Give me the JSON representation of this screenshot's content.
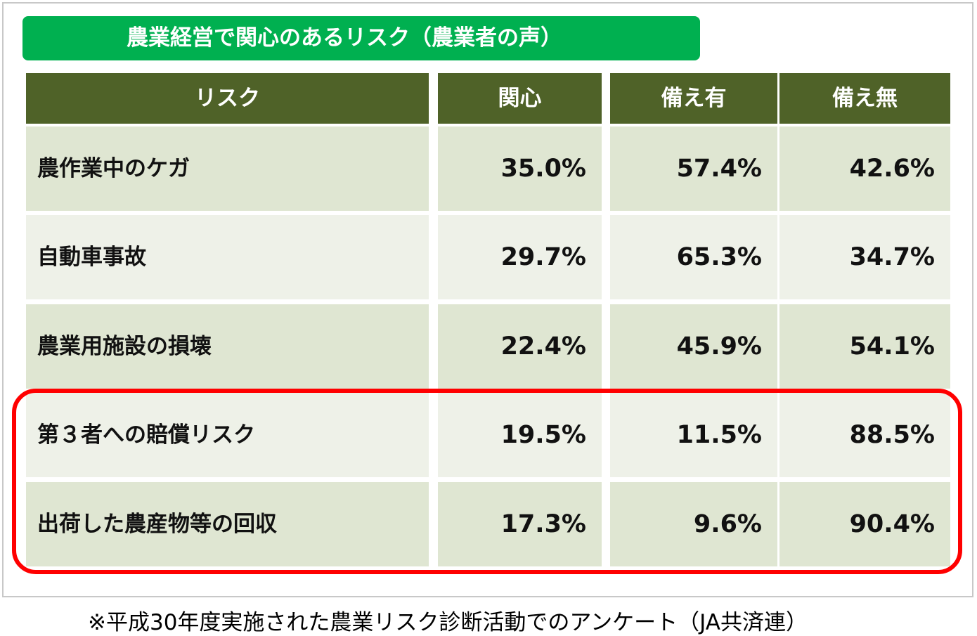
{
  "chart_data": {
    "type": "table",
    "title": "農業経営で関心のあるリスク（農業者の声）",
    "columns": [
      "リスク",
      "関心",
      "備え有",
      "備え無"
    ],
    "rows": [
      {
        "label": "農作業中のケガ",
        "values": [
          "35.0%",
          "57.4%",
          "42.6%"
        ]
      },
      {
        "label": "自動車事故",
        "values": [
          "29.7%",
          "65.3%",
          "34.7%"
        ]
      },
      {
        "label": "農業用施設の損壊",
        "values": [
          "22.4%",
          "45.9%",
          "54.1%"
        ]
      },
      {
        "label": "第３者への賠償リスク",
        "values": [
          "19.5%",
          "11.5%",
          "88.5%"
        ]
      },
      {
        "label": "出荷した農産物等の回収",
        "values": [
          "17.3%",
          "9.6%",
          "90.4%"
        ]
      }
    ],
    "highlighted_rows": [
      3,
      4
    ]
  },
  "footnote": "※平成30年度実施された農業リスク診断活動でのアンケート（JA共済連）",
  "colors": {
    "title_bg": "#00b050",
    "header_bg": "#4f6228",
    "row_dark": "#dfe6d2",
    "row_light": "#eef1e8",
    "highlight_border": "#ff0000"
  }
}
